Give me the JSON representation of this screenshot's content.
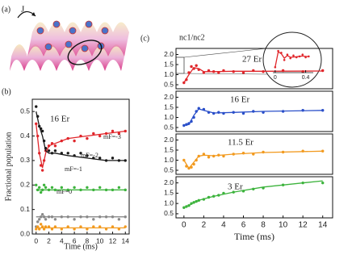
{
  "illustration": {
    "label": "(a)",
    "arrow_label": "J"
  },
  "chart_data": [
    {
      "type": "scatter",
      "panel_label": "(b)",
      "annotation": "16 Er",
      "xlabel": "Time (ms)",
      "ylabel": "Fractional population",
      "xlim": [
        -0.6,
        14.6
      ],
      "ylim": [
        0,
        0.55
      ],
      "xticks": [
        0,
        2,
        4,
        6,
        8,
        10,
        12,
        14
      ],
      "yticks": [
        {
          "value": 0,
          "label": "0.0"
        },
        0.1,
        0.2,
        0.3,
        0.4,
        0.5
      ],
      "series": [
        {
          "name": "mF=-3",
          "color": "#e0262b",
          "mode": "markers",
          "x": [
            0,
            0.25,
            0.5,
            0.75,
            1,
            1.25,
            1.5,
            2,
            2.5,
            3,
            4,
            5,
            6,
            7,
            8,
            9,
            10,
            11,
            12,
            13,
            14
          ],
          "values": [
            0.45,
            0.4,
            0.33,
            0.28,
            0.26,
            0.3,
            0.34,
            0.36,
            0.37,
            0.36,
            0.38,
            0.39,
            0.38,
            0.4,
            0.39,
            0.41,
            0.4,
            0.41,
            0.42,
            0.41,
            0.42
          ]
        },
        {
          "name": "mF=-2",
          "color": "#1a1a1a",
          "mode": "markers",
          "x": [
            0,
            0.25,
            0.5,
            0.75,
            1,
            1.25,
            1.5,
            2,
            2.5,
            3,
            4,
            5,
            6,
            7,
            8,
            9,
            10,
            11,
            12,
            13,
            14
          ],
          "values": [
            0.52,
            0.48,
            0.44,
            0.43,
            0.42,
            0.38,
            0.35,
            0.34,
            0.33,
            0.34,
            0.33,
            0.33,
            0.32,
            0.33,
            0.32,
            0.31,
            0.31,
            0.3,
            0.31,
            0.3,
            0.3
          ]
        },
        {
          "name": "mF=-1",
          "color": "#3cb33c",
          "mode": "markers",
          "x": [
            0,
            0.25,
            0.5,
            0.75,
            1,
            1.25,
            1.5,
            2,
            2.5,
            3,
            4,
            5,
            6,
            7,
            8,
            9,
            10,
            11,
            12,
            13,
            14
          ],
          "values": [
            0.2,
            0.18,
            0.19,
            0.17,
            0.18,
            0.2,
            0.19,
            0.18,
            0.19,
            0.18,
            0.19,
            0.18,
            0.19,
            0.18,
            0.19,
            0.18,
            0.19,
            0.18,
            0.18,
            0.19,
            0.18
          ]
        },
        {
          "name": "mF=0",
          "color": "#8a8a8a",
          "mode": "markers",
          "x": [
            0,
            0.25,
            0.5,
            0.75,
            1,
            1.25,
            1.5,
            2,
            2.5,
            3,
            4,
            5,
            6,
            7,
            8,
            9,
            10,
            11,
            12,
            13,
            14
          ],
          "values": [
            0.03,
            0.05,
            0.06,
            0.07,
            0.08,
            0.07,
            0.06,
            0.07,
            0.07,
            0.06,
            0.07,
            0.07,
            0.06,
            0.07,
            0.07,
            0.06,
            0.07,
            0.07,
            0.07,
            0.06,
            0.07
          ]
        },
        {
          "color": "#f29a1f",
          "mode": "markers",
          "x": [
            0,
            0.25,
            0.5,
            0.75,
            1,
            1.25,
            1.5,
            2,
            2.5,
            3,
            4,
            5,
            6,
            7,
            8,
            9,
            10,
            11,
            12,
            13,
            14
          ],
          "values": [
            0.02,
            0.03,
            0.02,
            0.04,
            0.03,
            0.02,
            0.03,
            0.03,
            0.02,
            0.03,
            0.02,
            0.03,
            0.02,
            0.03,
            0.02,
            0.03,
            0.03,
            0.02,
            0.03,
            0.02,
            0.03
          ]
        },
        {
          "color": "#e0262b",
          "mode": "line",
          "x": [
            0,
            0.5,
            1,
            1.5,
            2,
            3,
            5,
            8,
            11,
            14
          ],
          "values": [
            0.45,
            0.33,
            0.27,
            0.33,
            0.36,
            0.37,
            0.39,
            0.4,
            0.41,
            0.42
          ]
        },
        {
          "color": "#1a1a1a",
          "mode": "line",
          "x": [
            0,
            0.5,
            1,
            1.5,
            2,
            3,
            5,
            8,
            11,
            14
          ],
          "values": [
            0.5,
            0.44,
            0.4,
            0.34,
            0.33,
            0.33,
            0.32,
            0.31,
            0.3,
            0.3
          ]
        },
        {
          "color": "#3cb33c",
          "mode": "line",
          "x": [
            0,
            14
          ],
          "values": [
            0.18,
            0.18
          ]
        },
        {
          "color": "#8a8a8a",
          "mode": "line",
          "x": [
            0,
            14
          ],
          "values": [
            0.07,
            0.07
          ]
        },
        {
          "color": "#f29a1f",
          "mode": "line",
          "x": [
            0,
            14
          ],
          "values": [
            0.025,
            0.025
          ]
        }
      ]
    },
    {
      "type": "scatter",
      "panel_label": "(c)",
      "annotation": "27 Er",
      "ylabel": "nc1/nc2",
      "xlim": [
        -0.8,
        15
      ],
      "ylim": [
        0.3,
        2.3
      ],
      "yticks": [
        0.5,
        {
          "value": 1,
          "label": "1.0"
        },
        1.5,
        {
          "value": 2,
          "label": "2.0"
        }
      ],
      "series": [
        {
          "color": "#e0262b",
          "mode": "markers",
          "x": [
            0,
            0.25,
            0.5,
            0.75,
            1,
            1.25,
            1.5,
            2,
            2.5,
            3,
            3.5,
            4,
            5,
            6,
            7,
            8,
            10,
            12,
            14
          ],
          "values": [
            0.6,
            0.75,
            1.1,
            1.4,
            1.3,
            1.45,
            1.25,
            1.1,
            1.2,
            1.15,
            1.1,
            1.2,
            1.15,
            1.1,
            1.2,
            1.15,
            1.2,
            1.15,
            1.2
          ]
        },
        {
          "color": "#e0262b",
          "mode": "line",
          "x": [
            0,
            0.5,
            1,
            1.5,
            2,
            3,
            5,
            8,
            14
          ],
          "values": [
            0.6,
            1.0,
            1.35,
            1.3,
            1.15,
            1.15,
            1.17,
            1.17,
            1.18
          ]
        }
      ]
    },
    {
      "type": "scatter",
      "annotation": "16 Er",
      "xlim": [
        -0.8,
        15
      ],
      "ylim": [
        0.3,
        2.3
      ],
      "yticks": [
        0.5,
        {
          "value": 1,
          "label": "1.0"
        },
        1.5,
        {
          "value": 2,
          "label": "2.0"
        }
      ],
      "series": [
        {
          "color": "#2a4fc9",
          "mode": "markers",
          "x": [
            0,
            0.25,
            0.5,
            0.75,
            1,
            1.25,
            1.5,
            2,
            2.5,
            3,
            3.5,
            4,
            5,
            6,
            7,
            8,
            10,
            12,
            14
          ],
          "values": [
            0.6,
            0.65,
            0.7,
            0.8,
            1.0,
            1.3,
            1.45,
            1.4,
            1.25,
            1.2,
            1.25,
            1.2,
            1.25,
            1.2,
            1.3,
            1.25,
            1.3,
            1.35,
            1.35
          ]
        },
        {
          "color": "#2a4fc9",
          "mode": "line",
          "x": [
            0,
            0.5,
            1,
            1.5,
            2,
            3,
            5,
            8,
            14
          ],
          "values": [
            0.6,
            0.65,
            1.1,
            1.42,
            1.35,
            1.22,
            1.25,
            1.3,
            1.35
          ]
        }
      ]
    },
    {
      "type": "scatter",
      "annotation": "11.5 Er",
      "xlim": [
        -0.8,
        15
      ],
      "ylim": [
        0.3,
        2.3
      ],
      "yticks": [
        0.5,
        {
          "value": 1,
          "label": "1.0"
        },
        1.5,
        {
          "value": 2,
          "label": "2.0"
        }
      ],
      "series": [
        {
          "color": "#f29a1f",
          "mode": "markers",
          "x": [
            0,
            0.25,
            0.5,
            0.75,
            1,
            1.25,
            1.5,
            2,
            2.5,
            3,
            3.5,
            4,
            5,
            6,
            7,
            8,
            10,
            12,
            14
          ],
          "values": [
            1.0,
            0.7,
            0.6,
            0.65,
            0.8,
            1.0,
            1.2,
            1.3,
            1.15,
            1.2,
            1.25,
            1.2,
            1.3,
            1.35,
            1.3,
            1.4,
            1.4,
            1.45,
            1.45
          ]
        },
        {
          "color": "#f29a1f",
          "mode": "line",
          "x": [
            0,
            0.5,
            1,
            1.5,
            2,
            3,
            5,
            8,
            14
          ],
          "values": [
            1.0,
            0.6,
            0.9,
            1.2,
            1.25,
            1.22,
            1.3,
            1.38,
            1.45
          ]
        }
      ]
    },
    {
      "type": "scatter",
      "annotation": "3 Er",
      "xlabel": "Time (ms)",
      "xlim": [
        -0.8,
        15
      ],
      "ylim": [
        0.3,
        2.3
      ],
      "xticks": [
        0,
        2,
        4,
        6,
        8,
        10,
        12,
        14
      ],
      "yticks": [
        0.5,
        {
          "value": 1,
          "label": "1.0"
        },
        1.5,
        {
          "value": 2,
          "label": "2.0"
        }
      ],
      "series": [
        {
          "color": "#3cb33c",
          "mode": "markers",
          "x": [
            0,
            0.25,
            0.5,
            0.75,
            1,
            1.25,
            1.5,
            2,
            2.5,
            3,
            3.5,
            4,
            5,
            6,
            7,
            8,
            10,
            12,
            14
          ],
          "values": [
            0.8,
            0.85,
            0.9,
            1.0,
            1.05,
            1.1,
            1.15,
            1.2,
            1.3,
            1.35,
            1.4,
            1.5,
            1.55,
            1.6,
            1.7,
            1.75,
            1.9,
            2.0,
            2.0
          ]
        },
        {
          "color": "#3cb33c",
          "mode": "line",
          "x": [
            0,
            0.5,
            1,
            1.5,
            2,
            3,
            5,
            8,
            14
          ],
          "values": [
            0.8,
            0.9,
            1.05,
            1.15,
            1.22,
            1.35,
            1.55,
            1.8,
            2.1
          ]
        }
      ]
    },
    {
      "type": "scatter",
      "xlim": [
        -0.03,
        0.5
      ],
      "ylim": [
        0.3,
        2.0
      ],
      "xticks": [
        0,
        0.4
      ],
      "series": [
        {
          "color": "#e0262b",
          "mode": "markers",
          "x": [
            0,
            0.04,
            0.08,
            0.12,
            0.16,
            0.2,
            0.24,
            0.28,
            0.32,
            0.36,
            0.4,
            0.44
          ],
          "values": [
            0.6,
            1.5,
            1.4,
            1.0,
            1.3,
            1.1,
            1.25,
            1.15,
            1.2,
            1.3,
            1.15,
            1.2
          ]
        },
        {
          "color": "#e0262b",
          "mode": "line",
          "x": [
            0,
            0.04,
            0.08,
            0.12,
            0.16,
            0.2,
            0.28,
            0.36,
            0.44
          ],
          "values": [
            0.6,
            1.45,
            1.35,
            1.1,
            1.25,
            1.15,
            1.18,
            1.22,
            1.18
          ]
        }
      ]
    }
  ]
}
